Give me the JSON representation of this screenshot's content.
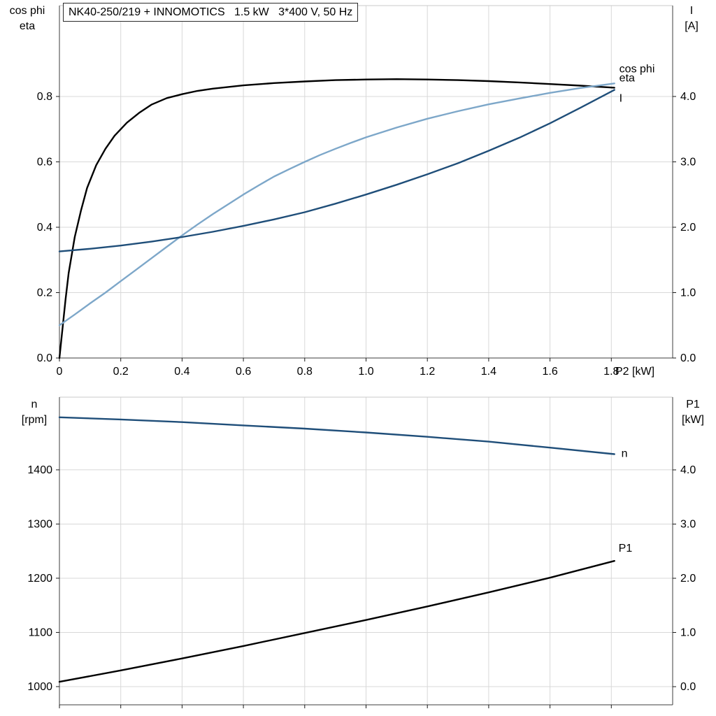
{
  "palette": {
    "grid": "#d8d8d8",
    "frame_light": "#c9c9c9",
    "axis": "#3c3c3c",
    "tick": "#1a1a1a",
    "text": "#000000",
    "background": "#ffffff",
    "eta_color": "#000000",
    "cos_phi_color": "#7da7c9",
    "current_color": "#1f4e79",
    "speed_color": "#1f4e79",
    "p1_color": "#000000"
  },
  "chart_data": [
    {
      "type": "line",
      "title": "NK40-250/219 + INNOMOTICS   1.5 kW   3*400 V, 50 Hz",
      "grid": true,
      "legend_position": "end-of-line-labels",
      "x_axis": {
        "label": "P2 [kW]",
        "min": 0,
        "max": 2.0,
        "ticks": [
          {
            "v": 0,
            "label": "0"
          },
          {
            "v": 0.2,
            "label": "0.2"
          },
          {
            "v": 0.4,
            "label": "0.4"
          },
          {
            "v": 0.6,
            "label": "0.6"
          },
          {
            "v": 0.8,
            "label": "0.8"
          },
          {
            "v": 1.0,
            "label": "1.0"
          },
          {
            "v": 1.2,
            "label": "1.2"
          },
          {
            "v": 1.4,
            "label": "1.4"
          },
          {
            "v": 1.6,
            "label": "1.6"
          },
          {
            "v": 1.8,
            "label": "1.8"
          }
        ]
      },
      "y_left": {
        "title_lines": [
          "cos phi",
          "eta"
        ],
        "min": 0,
        "max": 1.078,
        "ticks": [
          {
            "v": 0.0,
            "label": "0.0"
          },
          {
            "v": 0.2,
            "label": "0.2"
          },
          {
            "v": 0.4,
            "label": "0.4"
          },
          {
            "v": 0.6,
            "label": "0.6"
          },
          {
            "v": 0.8,
            "label": "0.8"
          }
        ]
      },
      "y_right": {
        "title_lines": [
          "I",
          "[A]"
        ],
        "min": 0,
        "max": 5.39,
        "ticks": [
          {
            "v": 0.0,
            "label": "0.0"
          },
          {
            "v": 1.0,
            "label": "1.0"
          },
          {
            "v": 2.0,
            "label": "2.0"
          },
          {
            "v": 3.0,
            "label": "3.0"
          },
          {
            "v": 4.0,
            "label": "4.0"
          }
        ]
      },
      "series": [
        {
          "name": "eta",
          "label": "eta",
          "axis": "left",
          "color": "#000000",
          "label_offset": [
            7,
            -9
          ],
          "x": [
            0,
            0.01,
            0.02,
            0.03,
            0.05,
            0.07,
            0.09,
            0.12,
            0.15,
            0.18,
            0.22,
            0.26,
            0.3,
            0.35,
            0.4,
            0.45,
            0.5,
            0.6,
            0.7,
            0.8,
            0.9,
            1.0,
            1.1,
            1.2,
            1.3,
            1.4,
            1.5,
            1.6,
            1.7,
            1.81
          ],
          "y": [
            0,
            0.09,
            0.18,
            0.26,
            0.37,
            0.45,
            0.52,
            0.59,
            0.64,
            0.68,
            0.72,
            0.75,
            0.775,
            0.795,
            0.807,
            0.817,
            0.824,
            0.834,
            0.841,
            0.846,
            0.85,
            0.852,
            0.853,
            0.852,
            0.85,
            0.847,
            0.843,
            0.838,
            0.833,
            0.827
          ]
        },
        {
          "name": "cos phi",
          "label": "cos phi",
          "axis": "left",
          "color": "#7da7c9",
          "label_offset": [
            7,
            -16
          ],
          "x": [
            0,
            0.05,
            0.1,
            0.15,
            0.2,
            0.25,
            0.3,
            0.35,
            0.4,
            0.45,
            0.5,
            0.55,
            0.6,
            0.65,
            0.7,
            0.75,
            0.8,
            0.85,
            0.9,
            0.95,
            1.0,
            1.1,
            1.2,
            1.3,
            1.4,
            1.5,
            1.6,
            1.7,
            1.81
          ],
          "y": [
            0.1,
            0.133,
            0.167,
            0.2,
            0.235,
            0.27,
            0.305,
            0.34,
            0.375,
            0.408,
            0.44,
            0.47,
            0.5,
            0.528,
            0.555,
            0.578,
            0.6,
            0.621,
            0.64,
            0.658,
            0.675,
            0.705,
            0.732,
            0.755,
            0.776,
            0.794,
            0.811,
            0.826,
            0.84
          ]
        },
        {
          "name": "I",
          "label": "I",
          "axis": "right",
          "color": "#1f4e79",
          "label_offset": [
            7,
            17
          ],
          "x": [
            0,
            0.1,
            0.2,
            0.3,
            0.4,
            0.5,
            0.6,
            0.7,
            0.8,
            0.9,
            1.0,
            1.1,
            1.2,
            1.3,
            1.4,
            1.5,
            1.6,
            1.7,
            1.81
          ],
          "y": [
            1.63,
            1.67,
            1.72,
            1.78,
            1.85,
            1.93,
            2.02,
            2.12,
            2.23,
            2.36,
            2.5,
            2.65,
            2.81,
            2.98,
            3.17,
            3.37,
            3.59,
            3.83,
            4.1
          ]
        }
      ]
    },
    {
      "type": "line",
      "title": "",
      "grid": true,
      "legend_position": "end-of-line-labels",
      "x_axis": {
        "min": 0,
        "max": 2.0,
        "ticks": [
          {
            "v": 0,
            "label": ""
          },
          {
            "v": 0.2,
            "label": ""
          },
          {
            "v": 0.4,
            "label": ""
          },
          {
            "v": 0.6,
            "label": ""
          },
          {
            "v": 0.8,
            "label": ""
          },
          {
            "v": 1.0,
            "label": ""
          },
          {
            "v": 1.2,
            "label": ""
          },
          {
            "v": 1.4,
            "label": ""
          },
          {
            "v": 1.6,
            "label": ""
          },
          {
            "v": 1.8,
            "label": ""
          }
        ]
      },
      "y_left": {
        "title_lines": [
          "n",
          "[rpm]"
        ],
        "min": 966.4,
        "max": 1534.1,
        "ticks": [
          {
            "v": 1000,
            "label": "1000"
          },
          {
            "v": 1100,
            "label": "1100"
          },
          {
            "v": 1200,
            "label": "1200"
          },
          {
            "v": 1300,
            "label": "1300"
          },
          {
            "v": 1400,
            "label": "1400"
          }
        ]
      },
      "y_right": {
        "title_lines": [
          "P1",
          "[kW]"
        ],
        "min": -0.335,
        "max": 5.342,
        "ticks": [
          {
            "v": 0.0,
            "label": "0.0"
          },
          {
            "v": 1.0,
            "label": "1.0"
          },
          {
            "v": 2.0,
            "label": "2.0"
          },
          {
            "v": 3.0,
            "label": "3.0"
          },
          {
            "v": 4.0,
            "label": "4.0"
          }
        ]
      },
      "series": [
        {
          "name": "n",
          "label": "n",
          "axis": "left",
          "color": "#1f4e79",
          "label_offset": [
            10,
            4
          ],
          "x": [
            0,
            0.2,
            0.4,
            0.6,
            0.8,
            1.0,
            1.2,
            1.4,
            1.6,
            1.81
          ],
          "y": [
            1497,
            1493,
            1488,
            1482,
            1476,
            1469,
            1461,
            1452,
            1441,
            1429
          ]
        },
        {
          "name": "P1",
          "label": "P1",
          "axis": "right",
          "color": "#000000",
          "label_offset": [
            6,
            -13
          ],
          "x": [
            0,
            0.2,
            0.4,
            0.6,
            0.8,
            1.0,
            1.2,
            1.4,
            1.6,
            1.81
          ],
          "y": [
            0.09,
            0.3,
            0.52,
            0.75,
            0.99,
            1.23,
            1.48,
            1.74,
            2.01,
            2.32
          ]
        }
      ]
    }
  ]
}
